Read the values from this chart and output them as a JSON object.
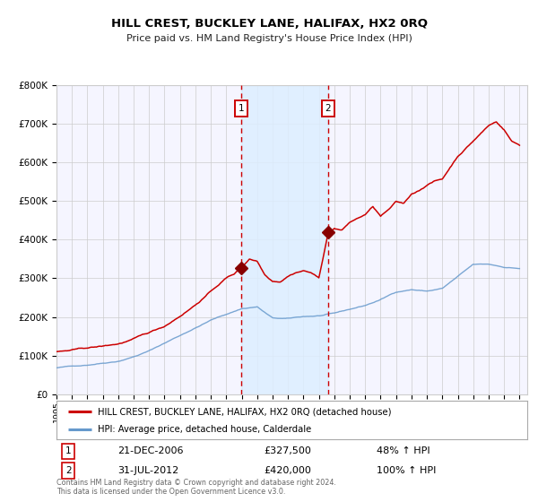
{
  "title": "HILL CREST, BUCKLEY LANE, HALIFAX, HX2 0RQ",
  "subtitle": "Price paid vs. HM Land Registry's House Price Index (HPI)",
  "legend_property": "HILL CREST, BUCKLEY LANE, HALIFAX, HX2 0RQ (detached house)",
  "legend_hpi": "HPI: Average price, detached house, Calderdale",
  "annotation1_date": "21-DEC-2006",
  "annotation1_price": "£327,500",
  "annotation1_hpi": "48% ↑ HPI",
  "annotation2_date": "31-JUL-2012",
  "annotation2_price": "£420,000",
  "annotation2_hpi": "100% ↑ HPI",
  "footer": "Contains HM Land Registry data © Crown copyright and database right 2024.\nThis data is licensed under the Open Government Licence v3.0.",
  "sale1_date_num": 2006.97,
  "sale1_price": 327500,
  "sale2_date_num": 2012.58,
  "sale2_price": 420000,
  "ylim": [
    0,
    800000
  ],
  "yticks": [
    0,
    100000,
    200000,
    300000,
    400000,
    500000,
    600000,
    700000,
    800000
  ],
  "property_line_color": "#cc0000",
  "hpi_line_color": "#6699cc",
  "sale_dot_color": "#880000",
  "vline_color": "#cc0000",
  "shade_color": "#ddeeff",
  "grid_color": "#cccccc",
  "bg_color": "#ffffff",
  "plot_bg_color": "#f5f5ff",
  "hpi_anchors_x": [
    1995,
    1996,
    1997,
    1998,
    1999,
    2000,
    2001,
    2002,
    2003,
    2004,
    2005,
    2006,
    2007,
    2008,
    2009,
    2010,
    2011,
    2012,
    2013,
    2014,
    2015,
    2016,
    2017,
    2018,
    2019,
    2020,
    2021,
    2022,
    2023,
    2024,
    2025
  ],
  "hpi_anchors_y": [
    68000,
    72000,
    76000,
    82000,
    88000,
    100000,
    115000,
    135000,
    155000,
    175000,
    195000,
    210000,
    225000,
    230000,
    200000,
    198000,
    203000,
    205000,
    210000,
    220000,
    230000,
    245000,
    265000,
    272000,
    268000,
    275000,
    305000,
    335000,
    335000,
    328000,
    325000
  ],
  "prop_anchors_x": [
    1995,
    1996,
    1997,
    1998,
    1999,
    2000,
    2001,
    2002,
    2003,
    2004,
    2005,
    2006,
    2006.5,
    2007.0,
    2007.5,
    2008.0,
    2008.5,
    2009.0,
    2009.5,
    2010.0,
    2010.5,
    2011.0,
    2011.5,
    2012.0,
    2012.58,
    2013.0,
    2013.5,
    2014.0,
    2014.5,
    2015.0,
    2015.5,
    2016.0,
    2016.5,
    2017.0,
    2017.5,
    2018.0,
    2018.5,
    2019.0,
    2019.5,
    2020.0,
    2020.5,
    2021.0,
    2021.5,
    2022.0,
    2022.5,
    2023.0,
    2023.5,
    2024.0,
    2024.5,
    2025.0
  ],
  "prop_anchors_y": [
    110000,
    113000,
    118000,
    122000,
    128000,
    140000,
    155000,
    172000,
    200000,
    230000,
    265000,
    300000,
    310000,
    327500,
    350000,
    345000,
    310000,
    295000,
    295000,
    310000,
    320000,
    325000,
    320000,
    305000,
    420000,
    435000,
    430000,
    450000,
    460000,
    470000,
    490000,
    465000,
    480000,
    500000,
    495000,
    520000,
    530000,
    545000,
    555000,
    560000,
    590000,
    620000,
    640000,
    660000,
    680000,
    700000,
    710000,
    690000,
    660000,
    650000
  ]
}
